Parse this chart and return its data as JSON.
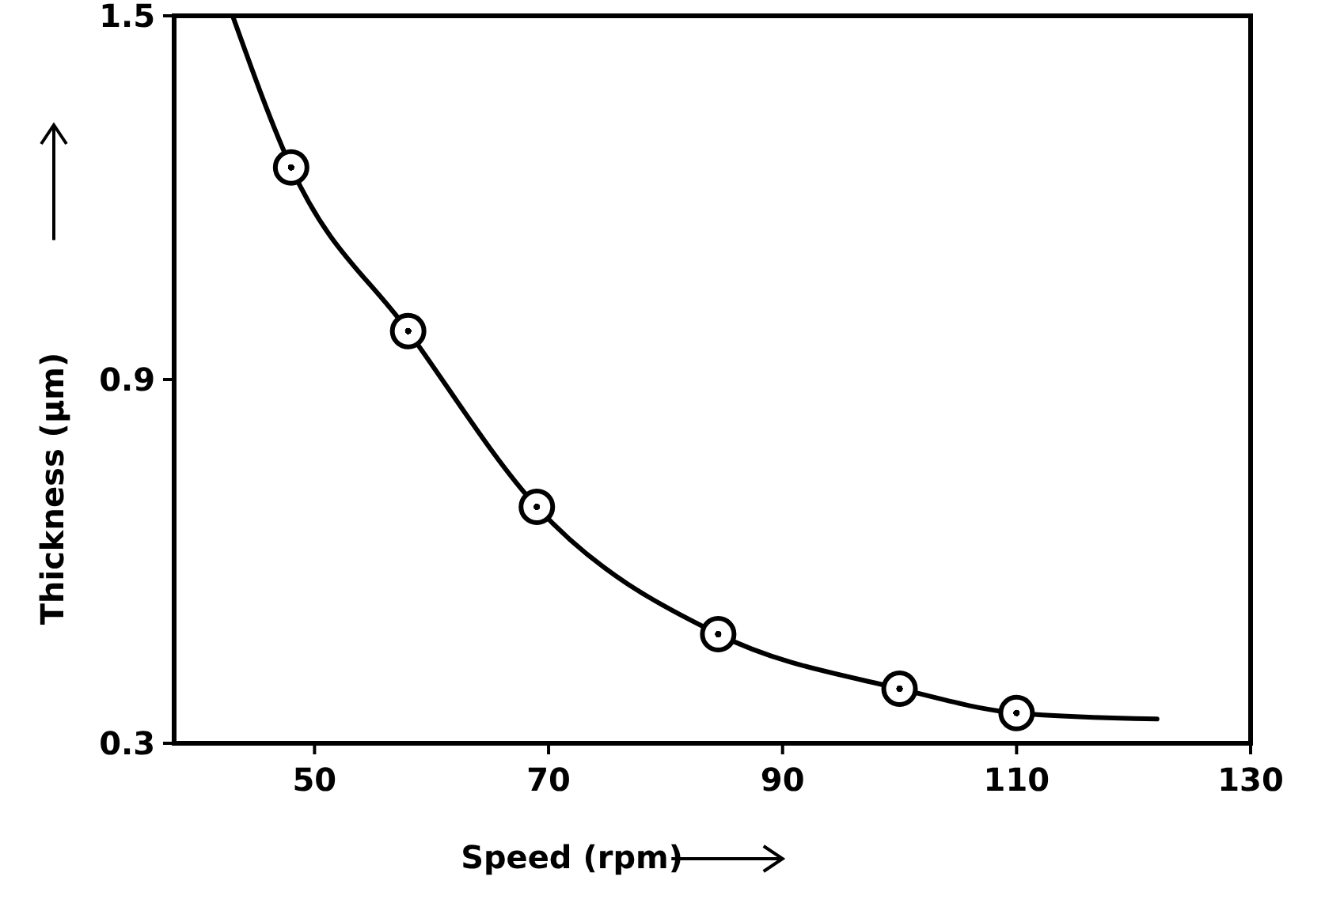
{
  "chart_data": {
    "type": "scatter",
    "xlabel": "Speed (rpm)",
    "ylabel": "Thickness (μm)",
    "xlim": [
      38,
      130
    ],
    "xticks": [
      50,
      70,
      90,
      110,
      130
    ],
    "ylim": [
      0.3,
      1.5
    ],
    "yticks": [
      0.3,
      0.9,
      1.5
    ],
    "grid": false,
    "series": [
      {
        "type": "line",
        "color": "#000000",
        "marker": "none",
        "line_style": "solid",
        "x": [
          43,
          48,
          58,
          69,
          84.5,
          100,
          110,
          122
        ],
        "values": [
          1.5,
          1.25,
          0.98,
          0.69,
          0.48,
          0.39,
          0.35,
          0.34
        ]
      },
      {
        "type": "scatter",
        "color": "#000000",
        "marker": "circle",
        "x": [
          48,
          58,
          69,
          84.5,
          100,
          110
        ],
        "values": [
          1.25,
          0.98,
          0.69,
          0.48,
          0.39,
          0.35
        ]
      }
    ]
  }
}
